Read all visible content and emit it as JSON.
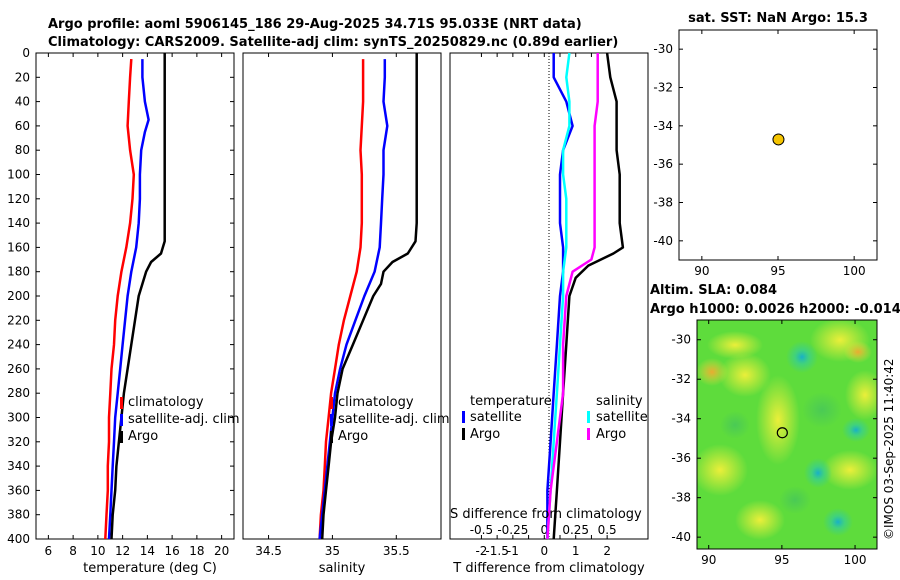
{
  "title": {
    "line1": "Argo profile: aoml 5906145_186 29-Aug-2025 34.71S 95.033E (NRT data)",
    "line2": "Climatology: CARS2009. Satellite-adj clim: synTS_20250829.nc (0.89d earlier)"
  },
  "colors": {
    "climatology": "#ff0000",
    "satellite": "#0000ff",
    "argo": "#000000",
    "salinity_diff": "#ff00ff",
    "satellite_s_diff": "#00ffff",
    "marker": "#f5c400"
  },
  "depth_axis": {
    "range": [
      0,
      400
    ],
    "ticks": [
      "0",
      "20",
      "40",
      "60",
      "80",
      "100",
      "120",
      "140",
      "160",
      "180",
      "200",
      "220",
      "240",
      "260",
      "280",
      "300",
      "320",
      "340",
      "360",
      "380",
      "400"
    ]
  },
  "chart_data": [
    {
      "id": "temperature",
      "type": "line",
      "xlabel": "temperature (deg C)",
      "xlim": [
        5,
        21
      ],
      "xticks": [
        "6",
        "8",
        "10",
        "12",
        "14",
        "16",
        "18",
        "20"
      ],
      "ylim": [
        400,
        0
      ],
      "series": [
        {
          "name": "climatology",
          "color": "#ff0000",
          "depth": [
            5,
            20,
            40,
            60,
            80,
            100,
            120,
            140,
            160,
            180,
            200,
            220,
            240,
            260,
            280,
            300,
            320,
            340,
            360,
            380,
            400
          ],
          "values": [
            12.7,
            12.6,
            12.5,
            12.4,
            12.6,
            12.9,
            12.8,
            12.6,
            12.3,
            11.9,
            11.6,
            11.4,
            11.3,
            11.1,
            11.0,
            10.9,
            10.9,
            10.8,
            10.8,
            10.7,
            10.6
          ]
        },
        {
          "name": "satellite-adj. clim",
          "color": "#0000ff",
          "depth": [
            5,
            20,
            40,
            55,
            65,
            80,
            100,
            120,
            140,
            160,
            180,
            200,
            220,
            240,
            260,
            280,
            300,
            320,
            340,
            360,
            380,
            400
          ],
          "values": [
            13.6,
            13.6,
            13.8,
            14.1,
            13.8,
            13.5,
            13.4,
            13.4,
            13.3,
            13.1,
            12.7,
            12.4,
            12.2,
            12.0,
            11.8,
            11.6,
            11.4,
            11.3,
            11.2,
            11.1,
            11.0,
            10.9
          ]
        },
        {
          "name": "Argo",
          "color": "#000000",
          "depth": [
            0,
            20,
            40,
            60,
            80,
            100,
            120,
            140,
            155,
            165,
            172,
            180,
            190,
            200,
            220,
            240,
            260,
            280,
            300,
            320,
            340,
            360,
            380,
            400
          ],
          "values": [
            15.4,
            15.4,
            15.4,
            15.4,
            15.4,
            15.4,
            15.4,
            15.4,
            15.4,
            15.1,
            14.3,
            13.9,
            13.6,
            13.3,
            13.0,
            12.7,
            12.4,
            12.1,
            11.9,
            11.7,
            11.5,
            11.4,
            11.2,
            11.1
          ]
        }
      ],
      "legend": [
        "climatology",
        "satellite-adj. clim",
        "Argo"
      ]
    },
    {
      "id": "salinity",
      "type": "line",
      "xlabel": "salinity",
      "xlim": [
        34.3,
        35.85
      ],
      "xticks": [
        "34.5",
        "35",
        "35.5"
      ],
      "ylim": [
        400,
        0
      ],
      "series": [
        {
          "name": "climatology",
          "color": "#ff0000",
          "depth": [
            5,
            20,
            40,
            60,
            80,
            100,
            120,
            140,
            160,
            180,
            200,
            220,
            240,
            260,
            280,
            300,
            320,
            340,
            360,
            380,
            400
          ],
          "values": [
            35.24,
            35.24,
            35.24,
            35.23,
            35.22,
            35.23,
            35.23,
            35.23,
            35.22,
            35.19,
            35.14,
            35.09,
            35.05,
            35.02,
            34.99,
            34.97,
            34.95,
            34.94,
            34.93,
            34.91,
            34.9
          ]
        },
        {
          "name": "satellite-adj. clim",
          "color": "#0000ff",
          "depth": [
            5,
            20,
            40,
            60,
            80,
            100,
            120,
            140,
            160,
            180,
            200,
            220,
            240,
            260,
            280,
            300,
            320,
            340,
            360,
            380,
            400
          ],
          "values": [
            35.41,
            35.41,
            35.4,
            35.43,
            35.4,
            35.4,
            35.39,
            35.38,
            35.37,
            35.33,
            35.25,
            35.18,
            35.11,
            35.06,
            35.02,
            35.0,
            34.98,
            34.96,
            34.94,
            34.92,
            34.9
          ]
        },
        {
          "name": "Argo",
          "color": "#000000",
          "depth": [
            0,
            20,
            40,
            60,
            80,
            100,
            120,
            140,
            155,
            165,
            172,
            180,
            190,
            200,
            220,
            240,
            260,
            280,
            300,
            320,
            340,
            360,
            380,
            400
          ],
          "values": [
            35.66,
            35.66,
            35.66,
            35.66,
            35.66,
            35.66,
            35.66,
            35.66,
            35.65,
            35.59,
            35.47,
            35.4,
            35.38,
            35.32,
            35.24,
            35.16,
            35.08,
            35.04,
            35.02,
            34.99,
            34.97,
            34.95,
            34.93,
            34.92
          ]
        }
      ],
      "legend": [
        "climatology",
        "satellite-adj. clim",
        "Argo"
      ]
    },
    {
      "id": "differences",
      "type": "line",
      "xlabel": "T difference from climatology",
      "xlabel_top": "S difference from climatology",
      "xlim": [
        -3,
        3.3
      ],
      "xticks": [
        "-2",
        "-1.5",
        "-1",
        "-0.5",
        "0",
        "0.5",
        "1",
        "1.5",
        "2"
      ],
      "xticks_top": [
        "-0.5",
        "-0.25",
        "0",
        "0.25",
        "0.5"
      ],
      "ylim": [
        400,
        0
      ],
      "series": [
        {
          "name": "temperature satellite",
          "color": "#0000ff",
          "depth": [
            0,
            20,
            40,
            60,
            80,
            100,
            120,
            140,
            160,
            180,
            200,
            240,
            280,
            320,
            360,
            400
          ],
          "values": [
            0.3,
            0.3,
            0.7,
            0.9,
            0.6,
            0.5,
            0.5,
            0.5,
            0.6,
            0.6,
            0.5,
            0.4,
            0.3,
            0.2,
            0.1,
            0.1
          ]
        },
        {
          "name": "temperature Argo",
          "color": "#000000",
          "depth": [
            0,
            20,
            40,
            60,
            80,
            100,
            120,
            140,
            160,
            165,
            175,
            185,
            200,
            240,
            280,
            320,
            360,
            400
          ],
          "values": [
            2.0,
            2.1,
            2.3,
            2.3,
            2.3,
            2.4,
            2.4,
            2.4,
            2.5,
            2.2,
            1.4,
            1.0,
            0.8,
            0.7,
            0.6,
            0.5,
            0.4,
            0.3
          ]
        },
        {
          "name": "salinity satellite",
          "color": "#00ffff",
          "depth": [
            0,
            20,
            40,
            60,
            80,
            100,
            120,
            140,
            160,
            180,
            200,
            240,
            280,
            320,
            360,
            400
          ],
          "values": [
            0.8,
            0.7,
            0.8,
            0.8,
            0.6,
            0.6,
            0.7,
            0.7,
            0.7,
            0.6,
            0.6,
            0.5,
            0.4,
            0.3,
            0.2,
            0.1
          ]
        },
        {
          "name": "salinity Argo",
          "color": "#ff00ff",
          "depth": [
            0,
            20,
            40,
            60,
            80,
            100,
            120,
            140,
            160,
            170,
            180,
            200,
            240,
            280,
            320,
            360,
            400
          ],
          "values": [
            1.7,
            1.7,
            1.7,
            1.6,
            1.6,
            1.6,
            1.6,
            1.6,
            1.6,
            1.5,
            0.9,
            0.7,
            0.6,
            0.6,
            0.4,
            0.2,
            0.1
          ]
        }
      ],
      "legend_temperature": {
        "title": "temperature",
        "items": [
          "satellite",
          "Argo"
        ]
      },
      "legend_salinity": {
        "title": "salinity",
        "items": [
          "satellite",
          "Argo"
        ]
      }
    },
    {
      "id": "sst_map",
      "type": "scatter",
      "title": "sat. SST: NaN Argo: 15.3",
      "xlim": [
        88.5,
        101.5
      ],
      "ylim": [
        -41,
        -29
      ],
      "xticks": [
        "90",
        "95",
        "100"
      ],
      "yticks": [
        "-30",
        "-32",
        "-34",
        "-36",
        "-38",
        "-40"
      ],
      "points": [
        {
          "x": 95.03,
          "y": -34.71
        }
      ]
    },
    {
      "id": "sla_map",
      "type": "heatmap",
      "title1": "Altim. SLA: 0.084",
      "title2": "Argo h1000: 0.0026 h2000: -0.014",
      "xlim": [
        89.2,
        101.5
      ],
      "ylim": [
        -40.6,
        -29
      ],
      "xticks": [
        "90",
        "95",
        "100"
      ],
      "yticks": [
        "-30",
        "-32",
        "-34",
        "-36",
        "-38",
        "-40"
      ],
      "points": [
        {
          "x": 95.03,
          "y": -34.71
        }
      ]
    }
  ],
  "watermark": "©IMOS 03-Sep-2025 11:40:42"
}
